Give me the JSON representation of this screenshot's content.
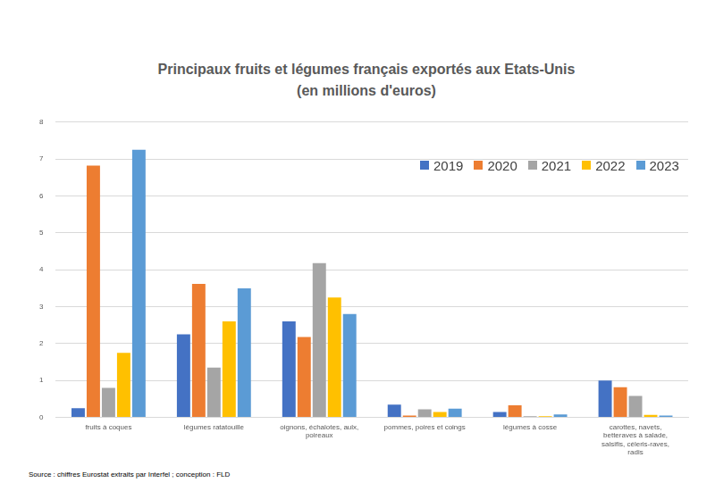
{
  "chart_data": {
    "type": "bar",
    "title": "Principaux fruits et légumes français exportés aux Etats-Unis (en millions d'euros)",
    "categories": [
      "fruits à coques",
      "légumes ratatouille",
      "oignons, échalotes, aulx, poireaux",
      "pommes, poires et coings",
      "légumes à cosse",
      "carottes, navets, betteraves à salade, salsifis, céleris-raves, radis"
    ],
    "series": [
      {
        "name": "2019",
        "color": "#4472c4",
        "values": [
          0.25,
          2.25,
          2.6,
          0.35,
          0.15,
          1.0
        ]
      },
      {
        "name": "2020",
        "color": "#ed7d31",
        "values": [
          6.82,
          3.62,
          2.18,
          0.05,
          0.33,
          0.82
        ]
      },
      {
        "name": "2021",
        "color": "#a5a5a5",
        "values": [
          0.8,
          1.35,
          4.18,
          0.22,
          0.03,
          0.58
        ]
      },
      {
        "name": "2022",
        "color": "#ffc000",
        "values": [
          1.75,
          2.6,
          3.25,
          0.15,
          0.03,
          0.07
        ]
      },
      {
        "name": "2023",
        "color": "#5b9bd5",
        "values": [
          7.25,
          3.5,
          2.8,
          0.24,
          0.08,
          0.05
        ]
      }
    ],
    "ylim": [
      0,
      8
    ],
    "yticks": [
      0,
      1,
      2,
      3,
      4,
      5,
      6,
      7,
      8
    ],
    "grid": true,
    "legend": "upper right",
    "annotations": [
      "Source : chiffres Eurostat extraits par Interfel ; conception : FLD"
    ]
  }
}
